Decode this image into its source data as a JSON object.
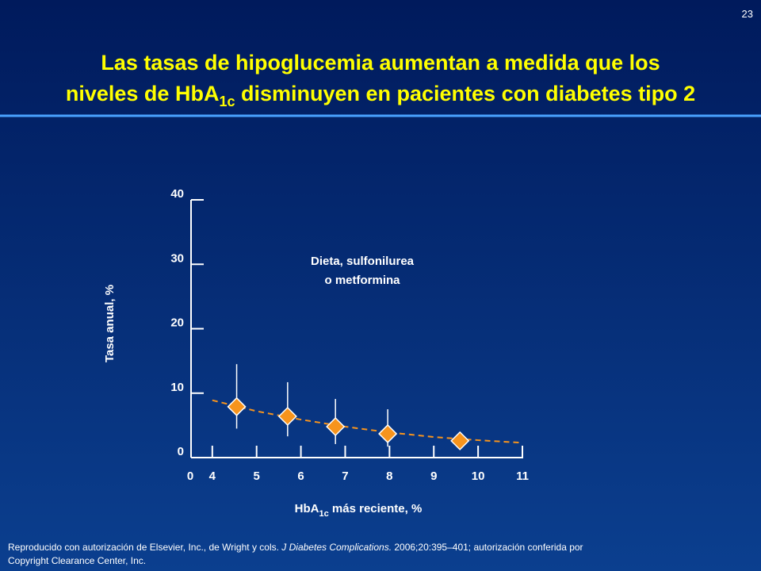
{
  "slide_number": "23",
  "chart_data": {
    "type": "scatter",
    "title_line1": "Las tasas de hipoglucemia aumentan a medida que los",
    "title_line2_before": "niveles de HbA",
    "title_line2_sub": "1c",
    "title_line2_after": " disminuyen en pacientes con diabetes tipo 2",
    "annotation_line1": "Dieta, sulfonilurea",
    "annotation_line2": "o metformina",
    "ylabel": "Tasa anual, %",
    "xlabel_before": "HbA",
    "xlabel_sub": "1c",
    "xlabel_after": " más reciente, %",
    "x_break_label": "0",
    "xlim": [
      3.52,
      11
    ],
    "xticks": [
      4,
      5,
      6,
      7,
      8,
      9,
      10,
      11
    ],
    "ylim": [
      0,
      40
    ],
    "yticks": [
      0,
      10,
      20,
      30,
      40
    ],
    "series": [
      {
        "color": "#f7941d",
        "x": [
          4.55,
          5.7,
          6.78,
          7.96,
          9.59
        ],
        "values": [
          7.9,
          6.4,
          4.8,
          3.7,
          2.6
        ],
        "upper": [
          14.5,
          11.7,
          9.1,
          7.5,
          null
        ],
        "lower": [
          4.5,
          3.3,
          2.1,
          1.7,
          null
        ]
      },
      {
        "type": "line",
        "color": "#f7941d",
        "dashed": true,
        "x": [
          4,
          5,
          6,
          7,
          8,
          9,
          10,
          11
        ],
        "values": [
          8.9,
          7.2,
          5.9,
          4.8,
          3.9,
          3.2,
          2.7,
          2.3
        ]
      }
    ]
  },
  "footer": {
    "line1_before": "Reproducido con autorización de Elsevier, Inc., de Wright y cols. ",
    "line1_italic": "J Diabetes Complications.",
    "line1_after": " 2006;20:395–401;  autorización conferida por",
    "line2": "Copyright Clearance Center, Inc."
  }
}
